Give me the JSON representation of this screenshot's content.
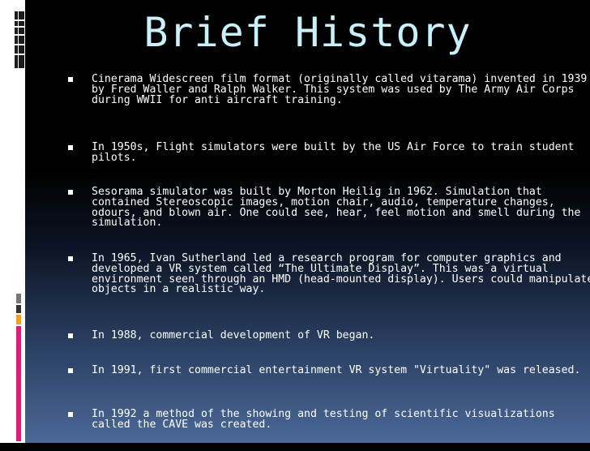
{
  "slide": {
    "title": "Brief History",
    "bullets": [
      "Cinerama Widescreen film format (originally called vitarama) invented in 1939 by Fred Waller and Ralph Walker. This system was used by The Army Air Corps during WWII for anti aircraft training.",
      "In 1950s, Flight simulators were built by the US Air Force to train student pilots.",
      "Sesorama simulator was built by Morton Heilig in 1962. Simulation that contained Stereoscopic images, motion chair, audio, temperature changes, odours, and blown air. One could see, hear, feel motion and smell during the simulation.",
      "In 1965, Ivan Sutherland led a research program for computer graphics and developed a VR system called “The Ultimate Display”. This was a virtual environment seen through an HMD (head-mounted display). Users could manipulate objects in a realistic way.",
      "In 1988, commercial development of VR began.",
      "In 1991, first commercial entertainment VR system \"Virtuality\" was released.",
      "In 1992 a method of the showing and testing of scientific visualizations called the CAVE was created."
    ]
  },
  "colors": {
    "title": "#c9f1fb",
    "text": "#ffffff",
    "accent_gray": "#777777",
    "accent_orange": "#f3a21b",
    "accent_pink": "#e4197a"
  }
}
